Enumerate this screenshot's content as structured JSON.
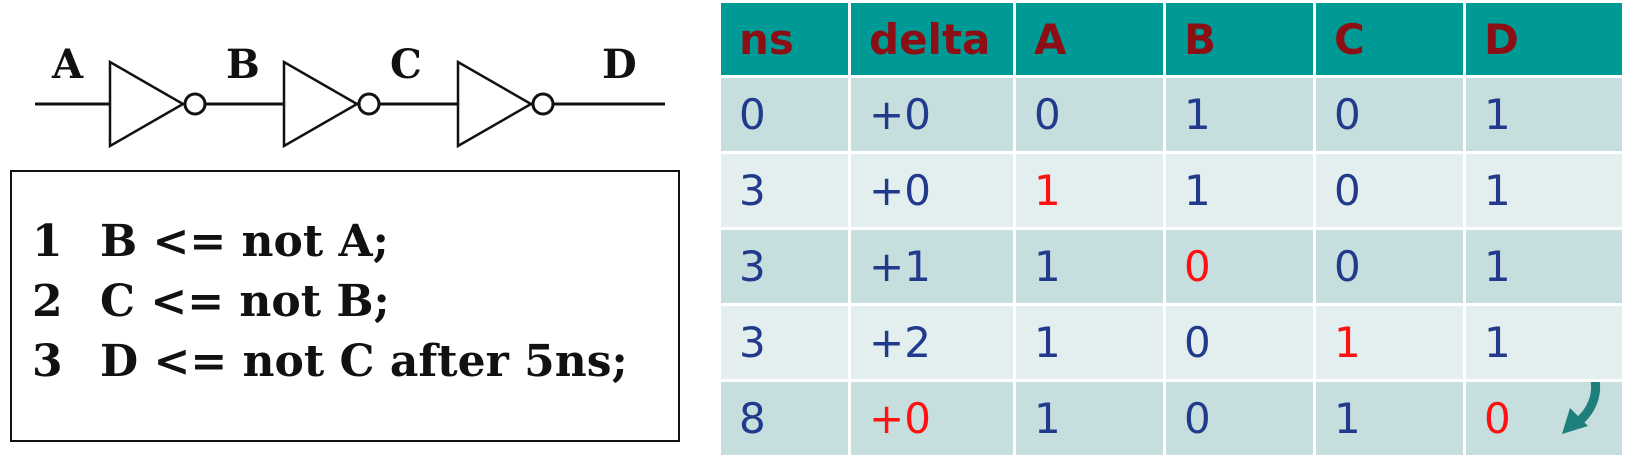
{
  "circuit": {
    "nodes": [
      "A",
      "B",
      "C",
      "D"
    ],
    "gate_type": "inverter"
  },
  "code": {
    "lines": [
      {
        "num": "1",
        "text": "B <= not A;"
      },
      {
        "num": "2",
        "text": "C <= not B;"
      },
      {
        "num": "3",
        "text": "D <= not C after 5ns;"
      }
    ]
  },
  "table": {
    "headers": [
      "ns",
      "delta",
      "A",
      "B",
      "C",
      "D"
    ],
    "rows": [
      [
        "0",
        "+0",
        "0",
        "1",
        "0",
        "1"
      ],
      [
        "3",
        "+0",
        "1",
        "1",
        "0",
        "1"
      ],
      [
        "3",
        "+1",
        "1",
        "0",
        "0",
        "1"
      ],
      [
        "3",
        "+2",
        "1",
        "0",
        "1",
        "1"
      ],
      [
        "8",
        "+0",
        "1",
        "0",
        "1",
        "0"
      ]
    ],
    "highlight_color": "#ff1111",
    "header_bg": "#009a96",
    "header_text_color": "#8b0f14",
    "cell_text_color": "#213a8c",
    "arrow_color": "#1f7f7c",
    "arrow_icon": "curved-arrow-down-icon"
  }
}
